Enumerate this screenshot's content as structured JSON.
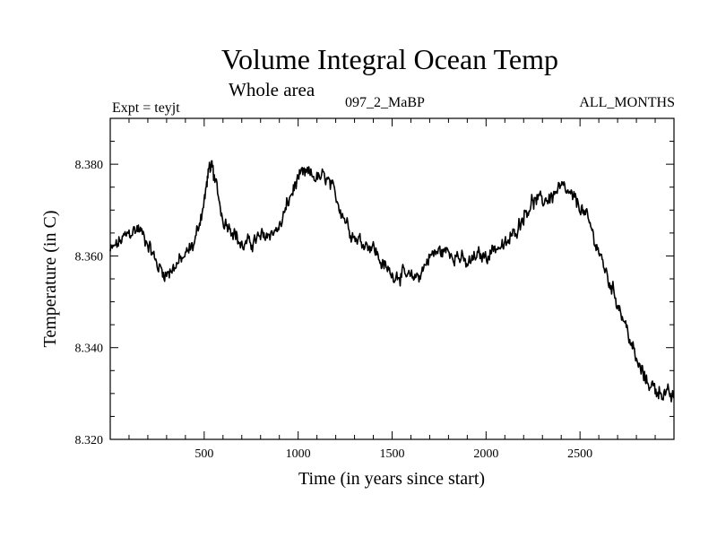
{
  "header": {
    "expt": "Expt = teyjt",
    "run": "097_2_MaBP",
    "months": "ALL_MONTHS"
  },
  "chart_data": {
    "type": "line",
    "title": "Volume Integral Ocean Temp",
    "subtitle": "Whole area",
    "xlabel": "Time (in years since start)",
    "ylabel": "Temperature (in C)",
    "xlim": [
      0,
      3000
    ],
    "ylim": [
      8.32,
      8.39
    ],
    "xticks": [
      500,
      1000,
      1500,
      2000,
      2500
    ],
    "yticks": [
      8.32,
      8.34,
      8.36,
      8.38
    ],
    "ytick_labels": [
      "8.320",
      "8.340",
      "8.360",
      "8.380"
    ],
    "grid": false,
    "series": [
      {
        "name": "Volume Integral Ocean Temp",
        "color": "#000000",
        "x": [
          0,
          50,
          100,
          150,
          200,
          250,
          300,
          350,
          400,
          450,
          500,
          530,
          550,
          600,
          650,
          700,
          750,
          800,
          850,
          900,
          950,
          1000,
          1050,
          1100,
          1150,
          1200,
          1250,
          1300,
          1350,
          1400,
          1450,
          1500,
          1550,
          1600,
          1650,
          1700,
          1750,
          1800,
          1850,
          1900,
          1950,
          2000,
          2050,
          2100,
          2150,
          2200,
          2250,
          2300,
          2350,
          2400,
          2450,
          2500,
          2550,
          2600,
          2650,
          2700,
          2750,
          2800,
          2850,
          2900,
          2950,
          3000
        ],
        "y": [
          8.361,
          8.363,
          8.365,
          8.366,
          8.363,
          8.358,
          8.356,
          8.358,
          8.36,
          8.363,
          8.372,
          8.38,
          8.378,
          8.368,
          8.366,
          8.362,
          8.363,
          8.364,
          8.365,
          8.366,
          8.372,
          8.377,
          8.378,
          8.377,
          8.377,
          8.373,
          8.368,
          8.364,
          8.363,
          8.362,
          8.358,
          8.356,
          8.356,
          8.355,
          8.356,
          8.36,
          8.361,
          8.361,
          8.36,
          8.358,
          8.36,
          8.36,
          8.362,
          8.362,
          8.365,
          8.369,
          8.372,
          8.372,
          8.373,
          8.375,
          8.373,
          8.371,
          8.367,
          8.361,
          8.355,
          8.35,
          8.344,
          8.337,
          8.333,
          8.331,
          8.33,
          8.329
        ]
      }
    ]
  }
}
